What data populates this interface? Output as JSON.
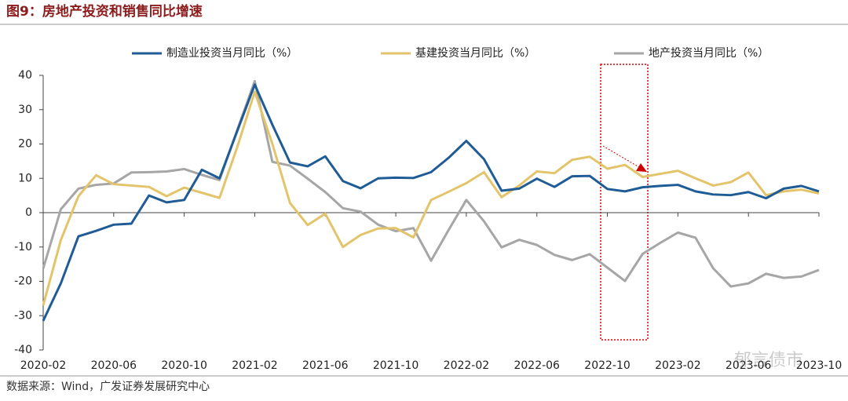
{
  "chart_data": {
    "type": "line",
    "title": "图9：房地产投资和销售同比增速",
    "source": "数据来源：Wind，广发证券发展研究中心",
    "watermark": "郁言债市",
    "categories": [
      "2020-02",
      null,
      null,
      null,
      "2020-06",
      null,
      null,
      null,
      "2020-10",
      null,
      null,
      null,
      "2021-02",
      null,
      null,
      null,
      "2021-06",
      null,
      null,
      null,
      "2021-10",
      null,
      null,
      null,
      "2022-02",
      null,
      null,
      null,
      "2022-06",
      null,
      null,
      null,
      "2022-10",
      null,
      null,
      null,
      "2023-02",
      null,
      null,
      null,
      "2023-06",
      null,
      null,
      null,
      "2023-10"
    ],
    "ylim": [
      -40,
      40
    ],
    "yticks": [
      -40,
      -30,
      -20,
      -10,
      0,
      10,
      20,
      30,
      40
    ],
    "legend": "top",
    "series": [
      {
        "name": "制造业投资当月同比（%）",
        "color": "#1f5c96",
        "values": [
          -31.5,
          -20.6,
          -6.9,
          -5.3,
          -3.5,
          -3.2,
          5,
          3,
          3.7,
          12.5,
          10,
          23.7,
          37.3,
          25.6,
          14.6,
          13.5,
          16.4,
          9.2,
          7.1,
          10,
          10.2,
          10.1,
          11.8,
          16,
          20.9,
          15.6,
          6.4,
          7,
          9.9,
          7.5,
          10.6,
          10.7,
          6.9,
          6.2,
          7.4,
          7.8,
          8.1,
          6.2,
          5.3,
          5.1,
          6,
          4.2,
          7,
          7.8,
          6.2
        ]
      },
      {
        "name": "基建投资当月同比（%）",
        "color": "#e3c46b",
        "values": [
          -27,
          -8,
          4.8,
          10.9,
          8.3,
          7.9,
          7.5,
          4.8,
          7.3,
          5.8,
          4.3,
          19,
          35.2,
          20,
          2.8,
          -3.6,
          -0.3,
          -10,
          -6.5,
          -4.6,
          -4.5,
          -7.2,
          3.7,
          6.1,
          8.6,
          11.8,
          4.5,
          7.9,
          12,
          11.5,
          15.4,
          16.3,
          12.8,
          13.9,
          10.4,
          11.3,
          12.2,
          10,
          7.9,
          8.9,
          11.7,
          5.1,
          6.2,
          6.7,
          5.6
        ]
      },
      {
        "name": "地产投资当月同比（%）",
        "color": "#a6a6a6",
        "values": [
          -16.3,
          1,
          7,
          8.1,
          8.5,
          11.7,
          11.8,
          12,
          12.7,
          11,
          9.5,
          24,
          38.3,
          14.8,
          13.7,
          9.9,
          6,
          1.3,
          0.3,
          -3.5,
          -5.4,
          -4.5,
          -14,
          -5,
          3.7,
          -2.5,
          -10.1,
          -7.9,
          -9.4,
          -12.3,
          -13.8,
          -12.1,
          -16,
          -19.9,
          -12,
          -8.8,
          -5.8,
          -7.3,
          -16.2,
          -21.5,
          -20.6,
          -17.8,
          -19,
          -18.6,
          -16.7
        ]
      }
    ]
  }
}
